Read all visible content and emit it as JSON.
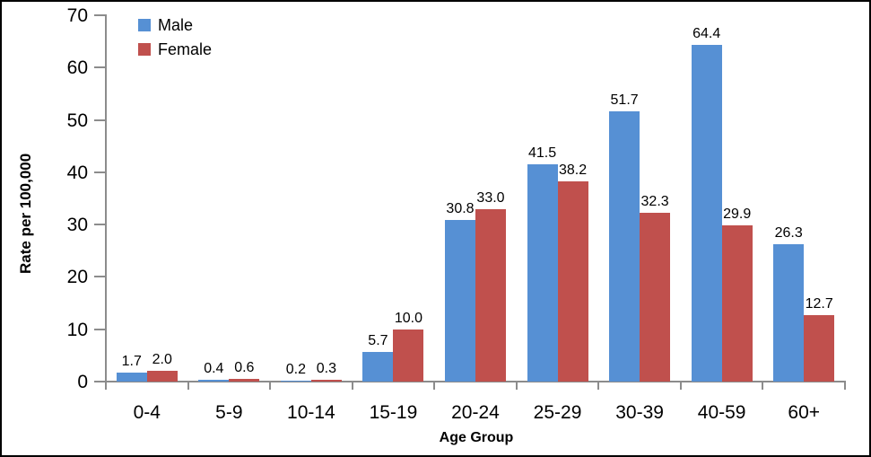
{
  "chart_data": {
    "type": "bar",
    "categories": [
      "0-4",
      "5-9",
      "10-14",
      "15-19",
      "20-24",
      "25-29",
      "30-39",
      "40-59",
      "60+"
    ],
    "series": [
      {
        "name": "Male",
        "color": "#5690D4",
        "values": [
          1.7,
          0.4,
          0.2,
          5.7,
          30.8,
          41.5,
          51.7,
          64.4,
          26.3
        ]
      },
      {
        "name": "Female",
        "color": "#C0504D",
        "values": [
          2.0,
          0.6,
          0.3,
          10.0,
          33.0,
          38.2,
          32.3,
          29.9,
          12.7
        ]
      }
    ],
    "title": "",
    "xlabel": "Age Group",
    "ylabel": "Rate per 100,000",
    "ylim": [
      0,
      70
    ],
    "ytick_step": 10,
    "grid": false,
    "legend_position": "top-left-inside",
    "value_labels": true,
    "value_label_format": "one-decimal"
  },
  "colors": {
    "axis": "#8c8c8c",
    "text": "#000000",
    "background": "#ffffff",
    "male": "#5690D4",
    "female": "#C0504D"
  },
  "legend": {
    "items": [
      {
        "label": "Male"
      },
      {
        "label": "Female"
      }
    ]
  }
}
